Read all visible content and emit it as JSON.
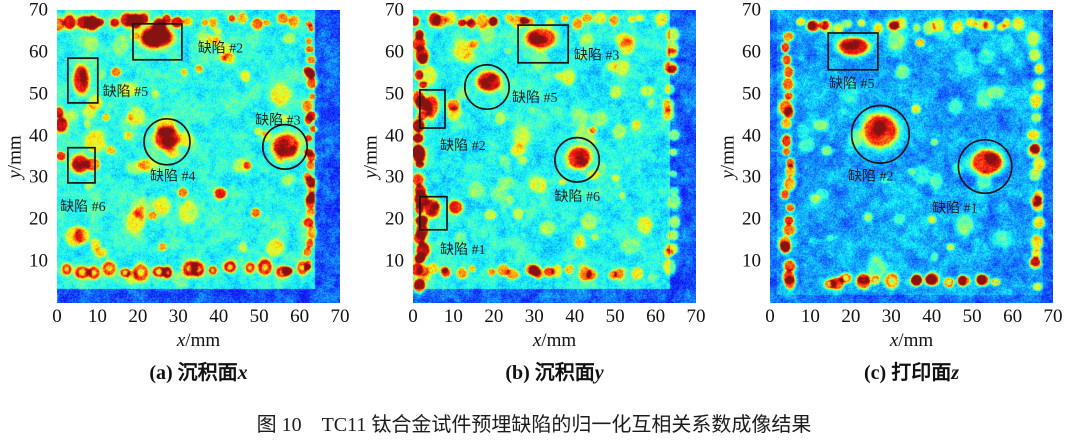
{
  "figure": {
    "caption": "图 10　TC11 钛合金试件预埋缺陷的归一化互相关系数成像结果"
  },
  "colors": {
    "marker_stroke": "#151515",
    "annotation_text": "#1d1d1d",
    "background": "#ffffff"
  },
  "chart_data": {
    "type": "heatmap",
    "colormap": "jet",
    "xlabel_var": "x",
    "xlabel_unit": "/mm",
    "ylabel_var": "y",
    "ylabel_unit": "/mm",
    "xlim": [
      0,
      70
    ],
    "ylim": [
      0,
      70
    ],
    "xticks": [
      0,
      10,
      20,
      30,
      40,
      50,
      60,
      70
    ],
    "yticks": [
      10,
      20,
      30,
      40,
      50,
      60,
      70
    ],
    "grid": false,
    "legend": "none",
    "panels": [
      {
        "id": "a",
        "title_prefix": "(a)",
        "title_text": "沉积面",
        "title_var": "x",
        "seed": 101,
        "base_in": 0.4,
        "base_out": 0.2,
        "defect_amp": 0.47,
        "green_amp": 0.17,
        "green_count": 60,
        "green_area": [
          2,
          61,
          6,
          66
        ],
        "specimen": {
          "x0": -1,
          "x1": 63.8,
          "y0": 3.5,
          "y1": 71
        },
        "edges": [
          {
            "dir": "h",
            "at": 67.4,
            "from": 1,
            "to": 31,
            "step": 2.6,
            "r": 1.5,
            "amp": 0.5,
            "ring": false
          },
          {
            "dir": "h",
            "at": 67.6,
            "from": 33,
            "to": 63,
            "step": 3.2,
            "r": 1.15,
            "amp": 0.36,
            "ring": false
          },
          {
            "dir": "h",
            "at": 8.0,
            "from": 2.5,
            "to": 52,
            "step": 3.7,
            "r": 1.6,
            "amp": 0.5,
            "ring": true
          },
          {
            "dir": "h",
            "at": 8.2,
            "from": 55,
            "to": 63,
            "step": 2.7,
            "r": 1.5,
            "amp": 0.5,
            "ring": true
          },
          {
            "dir": "v",
            "at": 62.5,
            "from": 8,
            "to": 66,
            "step": 2.2,
            "r": 1.1,
            "amp": 0.38,
            "ring": false
          },
          {
            "dir": "v",
            "at": 1.0,
            "from": 42,
            "to": 46,
            "step": 3.0,
            "r": 1.4,
            "amp": 0.45,
            "ring": false
          }
        ],
        "spots": [
          [
            8.8,
            33.2,
            1.9,
            0.42
          ],
          [
            40.3,
            26.3,
            1.6,
            0.46
          ],
          [
            49.0,
            21.7,
            1.3,
            0.4
          ],
          [
            14.5,
            55.3,
            1.3,
            0.4
          ],
          [
            35.0,
            56.0,
            1.0,
            0.32
          ],
          [
            23.5,
            21.0,
            1.2,
            0.34
          ],
          [
            31.0,
            26.5,
            1.3,
            0.38
          ],
          [
            47.0,
            33.0,
            1.1,
            0.33
          ],
          [
            12.0,
            44.5,
            1.0,
            0.3
          ],
          [
            0.9,
            35.2,
            1.3,
            0.45
          ],
          [
            62.5,
            55.0,
            1.4,
            0.5
          ],
          [
            62.7,
            29.0,
            1.4,
            0.5
          ],
          [
            62.5,
            25.0,
            1.3,
            0.45
          ],
          [
            26.0,
            13.5,
            1.1,
            0.3
          ]
        ],
        "defects": [
          {
            "label": "缺陷 #2",
            "marker": {
              "type": "rect",
              "x": 18.8,
              "y": 58.1,
              "w": 12.1,
              "h": 8.6
            },
            "blob": {
              "x": 24.6,
              "y": 63.4,
              "rx": 4.4,
              "ry": 2.5
            },
            "label_pos": [
              34.8,
              61.0
            ]
          },
          {
            "label": "缺陷 #5",
            "marker": {
              "type": "rect",
              "x": 2.7,
              "y": 47.8,
              "w": 7.4,
              "h": 10.7
            },
            "blob": {
              "x": 5.9,
              "y": 53.5,
              "rx": 2.2,
              "ry": 3.8
            },
            "label_pos": [
              11.3,
              50.6
            ]
          },
          {
            "label": "缺陷 #3",
            "marker": {
              "type": "circle",
              "cx": 56.4,
              "cy": 37.3,
              "r": 5.4
            },
            "blob": {
              "x": 56.4,
              "y": 37.6,
              "rx": 3.7,
              "ry": 3.2
            },
            "label_pos": [
              49.0,
              43.8
            ]
          },
          {
            "label": "缺陷 #4",
            "marker": {
              "type": "circle",
              "cx": 27.2,
              "cy": 38.5,
              "r": 5.6
            },
            "blob": {
              "x": 27.0,
              "y": 39.4,
              "rx": 3.4,
              "ry": 3.1
            },
            "label_pos": [
              23.0,
              30.5
            ]
          },
          {
            "label": "缺陷 #6",
            "marker": {
              "type": "rect",
              "x": 2.7,
              "y": 28.7,
              "w": 6.7,
              "h": 8.4
            },
            "blob": {
              "x": 5.6,
              "y": 33.3,
              "rx": 2.4,
              "ry": 2.4
            },
            "label_pos": [
              0.8,
              23.2
            ]
          }
        ]
      },
      {
        "id": "b",
        "title_prefix": "(b)",
        "title_text": "沉积面",
        "title_var": "y",
        "seed": 202,
        "base_in": 0.38,
        "base_out": 0.21,
        "defect_amp": 0.48,
        "green_amp": 0.16,
        "green_count": 55,
        "green_area": [
          3,
          61,
          6,
          66
        ],
        "specimen": {
          "x0": -1,
          "x1": 63.5,
          "y0": 3.5,
          "y1": 71
        },
        "edges": [
          {
            "dir": "v",
            "at": 1.6,
            "from": 5,
            "to": 67,
            "step": 2.5,
            "r": 1.5,
            "amp": 0.52,
            "ring": false
          },
          {
            "dir": "h",
            "at": 67.5,
            "from": 6,
            "to": 62,
            "step": 3.4,
            "r": 1.3,
            "amp": 0.28,
            "ring": false
          },
          {
            "dir": "h",
            "at": 67.3,
            "from": 1,
            "to": 24,
            "step": 4.8,
            "r": 1.3,
            "amp": 0.48,
            "ring": false
          },
          {
            "dir": "h",
            "at": 7.6,
            "from": 2,
            "to": 56,
            "step": 3.3,
            "r": 1.35,
            "amp": 0.32,
            "ring": false
          },
          {
            "dir": "v",
            "at": 63.8,
            "from": 8,
            "to": 64,
            "step": 4.0,
            "r": 1.35,
            "amp": 0.28,
            "ring": false
          }
        ],
        "spots": [
          [
            10.4,
            23.0,
            1.9,
            0.48
          ],
          [
            9.9,
            47.5,
            1.7,
            0.4
          ],
          [
            30.0,
            7.8,
            1.6,
            0.5
          ],
          [
            33.5,
            7.5,
            1.4,
            0.45
          ],
          [
            8.0,
            7.4,
            1.3,
            0.42
          ],
          [
            27.5,
            67.6,
            1.1,
            0.5
          ],
          [
            63.6,
            56.5,
            1.8,
            0.4
          ],
          [
            64.0,
            59.8,
            1.4,
            0.38
          ],
          [
            64.0,
            13.0,
            1.6,
            0.33
          ],
          [
            44.5,
            41.5,
            1.0,
            0.28
          ],
          [
            50.0,
            30.0,
            1.0,
            0.22
          ],
          [
            15.0,
            62.0,
            1.2,
            0.3
          ]
        ],
        "defects": [
          {
            "label": "缺陷 #3",
            "marker": {
              "type": "rect",
              "x": 26.0,
              "y": 57.4,
              "w": 12.4,
              "h": 9.0
            },
            "blob": {
              "x": 31.8,
              "y": 63.4,
              "rx": 3.9,
              "ry": 2.7
            },
            "label_pos": [
              39.8,
              59.4
            ]
          },
          {
            "label": "缺陷 #5",
            "marker": {
              "type": "circle",
              "cx": 18.3,
              "cy": 51.6,
              "r": 5.4
            },
            "blob": {
              "x": 18.6,
              "y": 53.0,
              "rx": 3.4,
              "ry": 2.6
            },
            "label_pos": [
              24.5,
              49.2
            ]
          },
          {
            "label": "缺陷 #2",
            "marker": {
              "type": "rect",
              "x": 1.7,
              "y": 41.8,
              "w": 6.2,
              "h": 9.1
            },
            "blob": {
              "x": 4.4,
              "y": 47.0,
              "rx": 1.9,
              "ry": 3.1
            },
            "label_pos": [
              6.7,
              37.8
            ]
          },
          {
            "label": "缺陷 #6",
            "marker": {
              "type": "circle",
              "cx": 40.6,
              "cy": 34.2,
              "r": 5.4
            },
            "blob": {
              "x": 40.9,
              "y": 34.8,
              "rx": 3.2,
              "ry": 3.0
            },
            "label_pos": [
              35.0,
              25.6
            ]
          },
          {
            "label": "缺陷 #1",
            "marker": {
              "type": "rect",
              "x": 1.7,
              "y": 17.5,
              "w": 6.7,
              "h": 7.9
            },
            "blob": {
              "x": 4.6,
              "y": 22.8,
              "rx": 2.2,
              "ry": 2.5
            },
            "label_pos": [
              6.7,
              12.9
            ]
          }
        ]
      },
      {
        "id": "c",
        "title_prefix": "(c)",
        "title_text": "打印面",
        "title_var": "z",
        "seed": 303,
        "base_in": 0.28,
        "base_out": 0.22,
        "defect_amp": 0.58,
        "green_amp": 0.13,
        "green_count": 34,
        "green_area": [
          6,
          63,
          7,
          64
        ],
        "specimen": {
          "x0": 1.5,
          "x1": 67.5,
          "y0": 2.0,
          "y1": 71
        },
        "edges": [
          {
            "dir": "v",
            "at": 4.3,
            "from": 4.5,
            "to": 65,
            "step": 2.7,
            "r": 1.45,
            "amp": 0.5,
            "ring": false
          },
          {
            "dir": "h",
            "at": 66.6,
            "from": 7,
            "to": 63,
            "step": 3.2,
            "r": 1.35,
            "amp": 0.3,
            "ring": false
          },
          {
            "dir": "v",
            "at": 65.7,
            "from": 5,
            "to": 64,
            "step": 3.6,
            "r": 1.35,
            "amp": 0.32,
            "ring": false
          },
          {
            "dir": "h",
            "at": 5.4,
            "from": 14,
            "to": 60,
            "step": 4.2,
            "r": 1.5,
            "amp": 0.4,
            "ring": true
          }
        ],
        "spots": [
          [
            10.5,
            66.3,
            1.7,
            0.5
          ],
          [
            13.2,
            66.5,
            1.4,
            0.45
          ],
          [
            30.5,
            66.4,
            1.2,
            0.4
          ],
          [
            37.0,
            62.3,
            1.2,
            0.42
          ],
          [
            57.0,
            66.0,
            1.1,
            0.34
          ],
          [
            65.5,
            37.0,
            1.5,
            0.5
          ],
          [
            65.8,
            24.5,
            1.5,
            0.45
          ],
          [
            65.5,
            10.0,
            1.4,
            0.4
          ],
          [
            16.5,
            4.8,
            1.8,
            0.5
          ],
          [
            23.0,
            5.0,
            1.9,
            0.5
          ],
          [
            36.0,
            5.5,
            1.5,
            0.45
          ],
          [
            40.0,
            5.8,
            1.9,
            0.5
          ],
          [
            48.0,
            5.4,
            1.5,
            0.45
          ],
          [
            52.5,
            5.6,
            1.7,
            0.5
          ],
          [
            40.0,
            20.0,
            1.1,
            0.25
          ],
          [
            44.5,
            13.5,
            1.0,
            0.28
          ],
          [
            36.0,
            46.5,
            1.3,
            0.3
          ],
          [
            40.5,
            38.5,
            1.0,
            0.25
          ],
          [
            14.0,
            36.5,
            1.4,
            0.22
          ],
          [
            11.0,
            25.0,
            1.3,
            0.2
          ]
        ],
        "defects": [
          {
            "label": "缺陷 #5",
            "marker": {
              "type": "rect",
              "x": 14.4,
              "y": 55.7,
              "w": 12.3,
              "h": 8.8
            },
            "blob": {
              "x": 20.4,
              "y": 61.4,
              "rx": 4.3,
              "ry": 2.4
            },
            "label_pos": [
              14.6,
              52.6
            ]
          },
          {
            "label": "缺陷 #2",
            "marker": {
              "type": "circle",
              "cx": 27.3,
              "cy": 40.3,
              "r": 7.0
            },
            "blob": {
              "x": 27.1,
              "y": 41.2,
              "rx": 4.9,
              "ry": 4.3
            },
            "label_pos": [
              19.3,
              30.5
            ]
          },
          {
            "label": "缺陷 #1",
            "marker": {
              "type": "circle",
              "cx": 53.2,
              "cy": 32.6,
              "r": 6.5
            },
            "blob": {
              "x": 53.6,
              "y": 33.8,
              "rx": 4.4,
              "ry": 3.3
            },
            "label_pos": [
              40.1,
              22.8
            ]
          }
        ]
      }
    ]
  }
}
